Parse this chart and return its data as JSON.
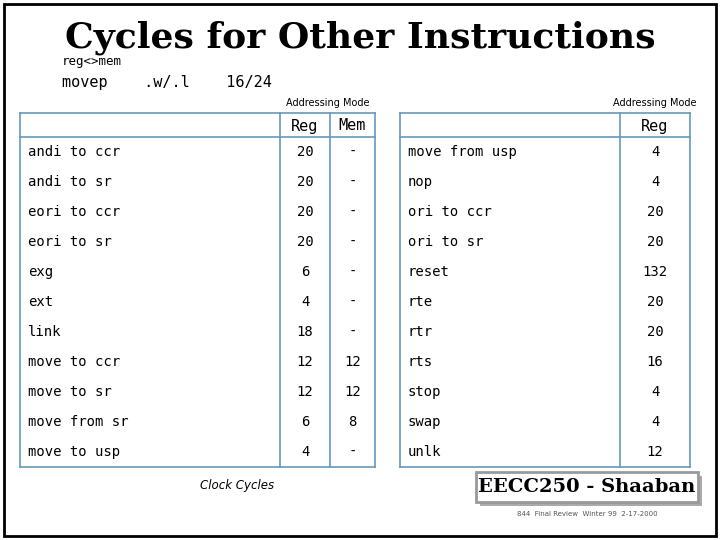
{
  "title": "Cycles for Other Instructions",
  "subtitle1": "reg<>mem",
  "subtitle2": "movep    .w/.l    16/24",
  "addr_mode_label": "Addressing Mode",
  "col_headers": [
    "Reg",
    "Mem"
  ],
  "left_rows": [
    [
      "andi to ccr",
      "20",
      "-"
    ],
    [
      "andi to sr",
      "20",
      "-"
    ],
    [
      "eori to ccr",
      "20",
      "-"
    ],
    [
      "eori to sr",
      "20",
      "-"
    ],
    [
      "exg",
      "6",
      "-"
    ],
    [
      "ext",
      "4",
      "-"
    ],
    [
      "link",
      "18",
      "-"
    ],
    [
      "move to ccr",
      "12",
      "12"
    ],
    [
      "move to sr",
      "12",
      "12"
    ],
    [
      "move from sr",
      "6",
      "8"
    ],
    [
      "move to usp",
      "4",
      "-"
    ]
  ],
  "right_col_header": "Reg",
  "right_rows": [
    [
      "move from usp",
      "4"
    ],
    [
      "nop",
      "4"
    ],
    [
      "ori to ccr",
      "20"
    ],
    [
      "ori to sr",
      "20"
    ],
    [
      "reset",
      "132"
    ],
    [
      "rte",
      "20"
    ],
    [
      "rtr",
      "20"
    ],
    [
      "rts",
      "16"
    ],
    [
      "stop",
      "4"
    ],
    [
      "swap",
      "4"
    ],
    [
      "unlk",
      "12"
    ]
  ],
  "clock_cycles_label": "Clock Cycles",
  "eecc_label": "EECC250 - Shaaban",
  "footnote": "844  Final Review  Winter 99  2-17-2000",
  "bg_color": "#ffffff",
  "outer_border_color": "#000000",
  "line_color": "#6699bb",
  "title_color": "#000000",
  "body_font_color": "#000000",
  "eecc_border_color": "#999999",
  "eecc_bg_color": "#ffffff"
}
